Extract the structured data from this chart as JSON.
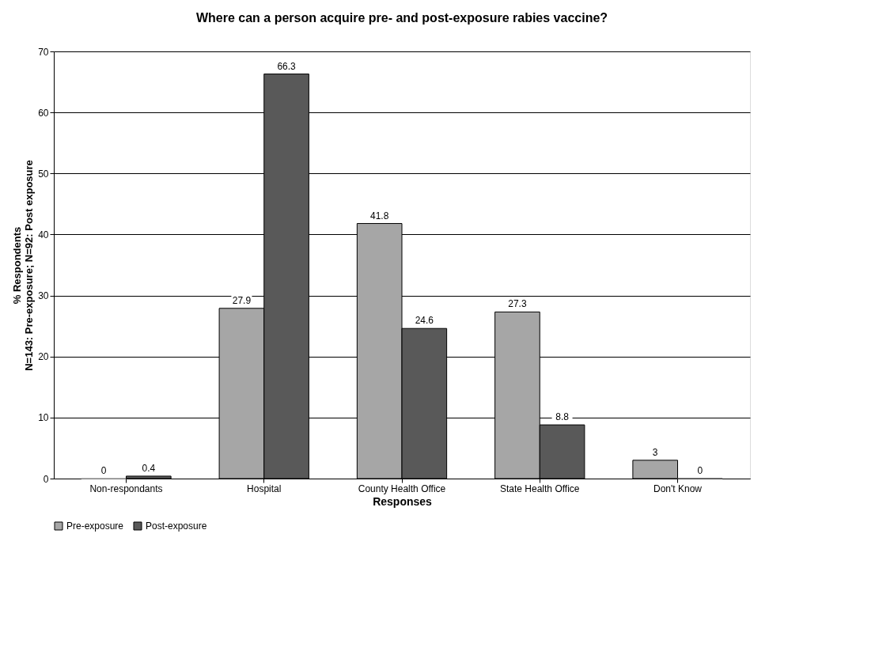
{
  "chart_data": {
    "type": "bar",
    "title": "Where can a person acquire pre- and post-exposure rabies vaccine?",
    "xlabel": "Responses",
    "ylabel": "% Respondents\nN=143: Pre-exposure; N=92: Post exposure",
    "categories": [
      "Non-respondants",
      "Hospital",
      "County Health Office",
      "State Health Office",
      "Don't Know"
    ],
    "series": [
      {
        "name": "Pre-exposure",
        "color": "#a6a6a6",
        "values": [
          0,
          27.9,
          41.8,
          27.3,
          3
        ]
      },
      {
        "name": "Post-exposure",
        "color": "#595959",
        "values": [
          0.4,
          66.3,
          24.6,
          8.8,
          0
        ]
      }
    ],
    "ylim": [
      0,
      70
    ],
    "yticks": [
      0,
      10,
      20,
      30,
      40,
      50,
      60,
      70
    ],
    "grid": "y",
    "legend": "bottom",
    "data_labels": true
  }
}
